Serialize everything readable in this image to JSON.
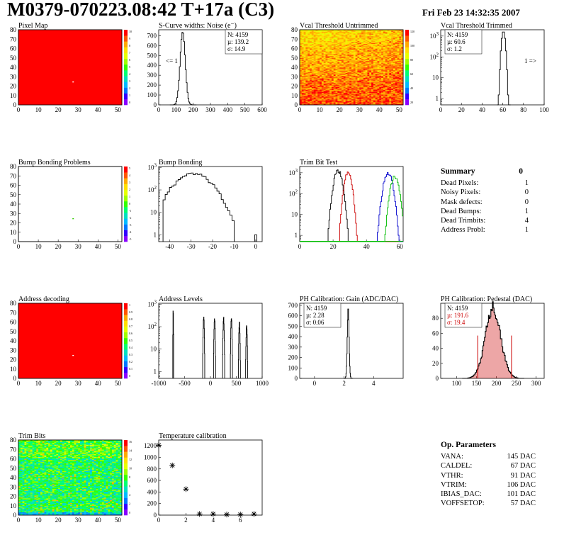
{
  "header": {
    "title": "M0379-070223.08:42 T+17a (C3)",
    "date": "Fri Feb 23 14:32:35 2007"
  },
  "colors": {
    "map_red": "#ff0000",
    "palette": [
      "#8800ff",
      "#3300ff",
      "#0077ff",
      "#00bbff",
      "#00e0c0",
      "#00ff70",
      "#33ff00",
      "#a0ff00",
      "#e6ff00",
      "#ffe000",
      "#ffaa00",
      "#ff5500",
      "#ff0000"
    ],
    "trim_lines": [
      "#000000",
      "#cc0000",
      "#0000cc",
      "#00bb00"
    ],
    "pedestal_fill": "#cc0000"
  },
  "plots": {
    "pixel_map": {
      "title": "Pixel Map"
    },
    "noise": {
      "title": "S-Curve widths: Noise (e⁻)",
      "stats": [
        "N: 4159",
        "µ: 139.2",
        "σ: 14.9"
      ],
      "arrow": "<= 1"
    },
    "vcal_untrimmed": {
      "title": "Vcal Threshold Untrimmed"
    },
    "vcal_trimmed": {
      "title": "Vcal Threshold Trimmed",
      "stats": [
        "N: 4159",
        "µ: 60.6",
        "σ:  1.2"
      ],
      "arrow": "1 =>"
    },
    "bump_problems": {
      "title": "Bump Bonding Problems"
    },
    "bump_bonding": {
      "title": "Bump Bonding"
    },
    "trim_bit_test": {
      "title": "Trim Bit Test"
    },
    "address_decoding": {
      "title": "Address decoding"
    },
    "address_levels": {
      "title": "Address Levels"
    },
    "ph_gain": {
      "title": "PH Calibration: Gain (ADC/DAC)",
      "stats": [
        "N: 4159",
        "µ: 2.28",
        "σ: 0.06"
      ]
    },
    "ph_pedestal": {
      "title": "PH Calibration: Pedestal (DAC)",
      "stats": [
        "N: 4159",
        "µ: 191.6",
        "σ: 19.4"
      ]
    },
    "trim_bits": {
      "title": "Trim Bits"
    },
    "temperature": {
      "title": "Temperature calibration"
    }
  },
  "summary": {
    "title": "Summary",
    "total": "0",
    "rows": [
      {
        "label": "Dead Pixels:",
        "value": "1"
      },
      {
        "label": "Noisy Pixels:",
        "value": "0"
      },
      {
        "label": "Mask defects:",
        "value": "0"
      },
      {
        "label": "Dead Bumps:",
        "value": "1"
      },
      {
        "label": "Dead Trimbits:",
        "value": "4"
      },
      {
        "label": "Address Probl:",
        "value": "1"
      }
    ]
  },
  "op_params": {
    "title": "Op. Parameters",
    "rows": [
      {
        "label": "VANA:",
        "value": "145 DAC"
      },
      {
        "label": "CALDEL:",
        "value": "67 DAC"
      },
      {
        "label": "VTHR:",
        "value": "91 DAC"
      },
      {
        "label": "VTRIM:",
        "value": "106 DAC"
      },
      {
        "label": "IBIAS_DAC:",
        "value": "101 DAC"
      },
      {
        "label": "VOFFSETOP:",
        "value": "57 DAC"
      }
    ]
  },
  "chart_data": [
    {
      "id": "pixel_map",
      "type": "heatmap",
      "title": "Pixel Map",
      "xlim": [
        0,
        52
      ],
      "ylim": [
        0,
        80
      ],
      "xticks": [
        0,
        10,
        20,
        30,
        40,
        50
      ],
      "yticks": [
        0,
        10,
        20,
        30,
        40,
        50,
        60,
        70,
        80
      ],
      "fill": "uniform",
      "uniform_value": 10,
      "cbar_ticks": [
        "10",
        "9",
        "8",
        "7",
        "6",
        "5",
        "4",
        "3",
        "2",
        "1",
        "0"
      ],
      "markers": [
        {
          "x": 27.5,
          "y": 24.5,
          "color": "#ffffff"
        }
      ]
    },
    {
      "id": "noise",
      "type": "bar",
      "title": "S-Curve widths: Noise (e⁻)",
      "xlim": [
        0,
        600
      ],
      "ylim": [
        0,
        760
      ],
      "xticks": [
        0,
        100,
        200,
        300,
        400,
        500,
        600
      ],
      "yticks": [
        0,
        100,
        200,
        300,
        400,
        500,
        600,
        700
      ],
      "histogram": {
        "mean": 139.2,
        "sigma": 14.9,
        "peak": 740,
        "bin": 5
      },
      "stats": [
        "N: 4159",
        "µ: 139.2",
        "σ: 14.9"
      ]
    },
    {
      "id": "vcal_untrimmed",
      "type": "heatmap",
      "title": "Vcal Threshold Untrimmed",
      "xlim": [
        0,
        52
      ],
      "ylim": [
        0,
        80
      ],
      "xticks": [
        0,
        10,
        20,
        30,
        40,
        50
      ],
      "yticks": [
        0,
        10,
        20,
        30,
        40,
        50,
        60,
        70,
        80
      ],
      "fill": "gradient",
      "cbar_ticks": [
        "120",
        "100",
        "80",
        "60",
        "40",
        "20"
      ]
    },
    {
      "id": "vcal_trimmed",
      "type": "bar",
      "title": "Vcal Threshold Trimmed",
      "xlim": [
        0,
        100
      ],
      "ylog": true,
      "ylim": [
        0.5,
        2000
      ],
      "xticks": [
        0,
        20,
        40,
        60,
        80,
        100
      ],
      "yticks_log": [
        1,
        10,
        100,
        1000
      ],
      "histogram": {
        "mean": 60.6,
        "sigma": 1.2,
        "peak": 1700,
        "bin": 1
      },
      "stats": [
        "N: 4159",
        "µ: 60.6",
        "σ:  1.2"
      ]
    },
    {
      "id": "bump_problems",
      "type": "heatmap",
      "title": "Bump Bonding Problems",
      "xlim": [
        0,
        52
      ],
      "ylim": [
        0,
        80
      ],
      "xticks": [
        0,
        10,
        20,
        30,
        40,
        50
      ],
      "yticks": [
        0,
        10,
        20,
        30,
        40,
        50,
        60,
        70,
        80
      ],
      "fill": "empty",
      "cbar_ticks": [
        "5",
        "4",
        "3",
        "2",
        "1",
        "0",
        "-1",
        "-2",
        "-3",
        "-4",
        "-5"
      ],
      "markers": [
        {
          "x": 27.5,
          "y": 24.5,
          "color": "#33cc00"
        }
      ]
    },
    {
      "id": "bump_bonding",
      "type": "bar",
      "title": "Bump Bonding",
      "xlim": [
        -45,
        3
      ],
      "ylog": true,
      "ylim": [
        0.5,
        1100
      ],
      "xticks": [
        -40,
        -30,
        -20,
        -10,
        0
      ],
      "yticks_log": [
        1,
        10,
        100,
        1000
      ],
      "histogram": {
        "mean": -29,
        "sigma": 6,
        "peak": 520,
        "bin": 1
      },
      "outlier": {
        "x": 0,
        "count": 1
      }
    },
    {
      "id": "trim_bit_test",
      "type": "line",
      "title": "Trim Bit Test",
      "xlim": [
        0,
        62
      ],
      "ylog": true,
      "ylim": [
        0.5,
        2000
      ],
      "xticks": [
        0,
        20,
        40,
        60
      ],
      "yticks_log": [
        1,
        10,
        100,
        1000
      ],
      "series": [
        {
          "mean": 23,
          "sigma": 1.6,
          "peak": 1300,
          "color": "#000000"
        },
        {
          "mean": 29,
          "sigma": 1.4,
          "peak": 1100,
          "color": "#cc0000"
        },
        {
          "mean": 53,
          "sigma": 1.7,
          "peak": 1000,
          "color": "#0000cc"
        },
        {
          "mean": 57,
          "sigma": 1.6,
          "peak": 700,
          "color": "#00bb00"
        }
      ]
    },
    {
      "id": "address_decoding",
      "type": "heatmap",
      "title": "Address decoding",
      "xlim": [
        0,
        52
      ],
      "ylim": [
        0,
        80
      ],
      "xticks": [
        0,
        10,
        20,
        30,
        40,
        50
      ],
      "yticks": [
        0,
        10,
        20,
        30,
        40,
        50,
        60,
        70,
        80
      ],
      "fill": "uniform",
      "uniform_value": 1,
      "cbar_ticks": [
        "1",
        "0.9",
        "0.8",
        "0.7",
        "0.6",
        "0.5",
        "0.4",
        "0.3",
        "0.2",
        "0.1",
        "0"
      ],
      "markers": [
        {
          "x": 27.5,
          "y": 24.5,
          "color": "#ffffff"
        }
      ]
    },
    {
      "id": "address_levels",
      "type": "bar",
      "title": "Address Levels",
      "xlim": [
        -1000,
        1000
      ],
      "ylog": true,
      "ylim": [
        0.5,
        1100
      ],
      "xticks": [
        -1000,
        -500,
        0,
        500,
        1000
      ],
      "yticks_log": [
        1,
        10,
        100,
        1000
      ],
      "peaks": [
        -720,
        -130,
        80,
        255,
        405,
        560,
        700
      ],
      "peak_heights": [
        700,
        320,
        260,
        280,
        280,
        170,
        140
      ]
    },
    {
      "id": "ph_gain",
      "type": "bar",
      "title": "PH Calibration: Gain (ADC/DAC)",
      "xlim": [
        -1,
        6
      ],
      "ylim": [
        0,
        720
      ],
      "xticks": [
        0,
        2,
        4
      ],
      "yticks": [
        0,
        100,
        200,
        300,
        400,
        500,
        600,
        700
      ],
      "histogram": {
        "mean": 2.28,
        "sigma": 0.06,
        "peak": 680,
        "bin": 0.025
      },
      "stats": [
        "N: 4159",
        "µ: 2.28",
        "σ: 0.06"
      ]
    },
    {
      "id": "ph_pedestal",
      "type": "bar",
      "title": "PH Calibration: Pedestal (DAC)",
      "xlim": [
        60,
        320
      ],
      "ylim": [
        0,
        100
      ],
      "xticks": [
        100,
        150,
        200,
        250,
        300
      ],
      "yticks": [
        0,
        20,
        40,
        60,
        80
      ],
      "histogram": {
        "mean": 191.6,
        "sigma": 19.4,
        "peak": 92,
        "bin": 2
      },
      "cut_lines": [
        153,
        238
      ],
      "cut_height": 57,
      "stats": [
        "N: 4159",
        "µ: 191.6",
        "σ: 19.4"
      ]
    },
    {
      "id": "trim_bits",
      "type": "heatmap",
      "title": "Trim Bits",
      "xlim": [
        0,
        52
      ],
      "ylim": [
        0,
        80
      ],
      "xticks": [
        0,
        10,
        20,
        30,
        40,
        50
      ],
      "yticks": [
        0,
        10,
        20,
        30,
        40,
        50,
        60,
        70,
        80
      ],
      "fill": "trim",
      "cbar_ticks": [
        "16",
        "14",
        "12",
        "10",
        "8",
        "6",
        "4",
        "2",
        "0"
      ]
    },
    {
      "id": "temperature",
      "type": "scatter",
      "title": "Temperature calibration",
      "xlim": [
        0,
        7.6
      ],
      "ylim": [
        0,
        1300
      ],
      "xticks": [
        0,
        2,
        4,
        6
      ],
      "yticks": [
        0,
        200,
        400,
        600,
        800,
        1000,
        1200
      ],
      "x": [
        0,
        1,
        2,
        3,
        4,
        5,
        6,
        7
      ],
      "y": [
        1210,
        860,
        450,
        20,
        20,
        10,
        10,
        20
      ]
    }
  ]
}
